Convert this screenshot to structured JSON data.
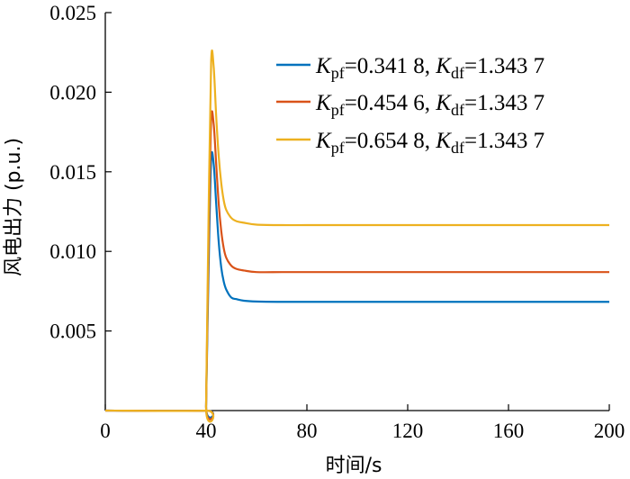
{
  "chart_data": {
    "type": "line",
    "xlabel": "时间/s",
    "ylabel": "风电出力 (p.u.)",
    "xlim": [
      0,
      200
    ],
    "ylim": [
      0,
      0.025
    ],
    "xticks": [
      0,
      40,
      80,
      120,
      160,
      200
    ],
    "xtick_labels": [
      "0",
      "40",
      "80",
      "120",
      "160",
      "200"
    ],
    "yticks": [
      0.005,
      0.01,
      0.015,
      0.02,
      0.025
    ],
    "ytick_labels": [
      "0.005",
      "0.010",
      "0.015",
      "0.020",
      "0.025"
    ],
    "grid": false,
    "legend_position": "top-right",
    "x": [
      0,
      39.9,
      40.0,
      41.0,
      42.0,
      43.0,
      44.0,
      45.0,
      46.0,
      47.0,
      48.0,
      50.0,
      52.0,
      55.0,
      60.0,
      70.0,
      80.0,
      100.0,
      120.0,
      160.0,
      200.0
    ],
    "series": [
      {
        "name_parts": [
          "K",
          "pf",
          "=0.341 8, ",
          "K",
          "df",
          "=1.343 7"
        ],
        "color": "#0072BD",
        "values": [
          0,
          0,
          0.0003,
          0.009,
          0.0157,
          0.0155,
          0.013,
          0.0106,
          0.009,
          0.0081,
          0.0076,
          0.0071,
          0.007,
          0.0069,
          0.00685,
          0.00683,
          0.00683,
          0.00683,
          0.00683,
          0.00683,
          0.00683
        ]
      },
      {
        "name_parts": [
          "K",
          "pf",
          "=0.454 6, ",
          "K",
          "df",
          "=1.343 7"
        ],
        "color": "#D95319",
        "values": [
          0,
          0,
          0.0003,
          0.0105,
          0.0182,
          0.018,
          0.0155,
          0.013,
          0.0113,
          0.0102,
          0.0096,
          0.0091,
          0.0089,
          0.0088,
          0.0087,
          0.0087,
          0.0087,
          0.0087,
          0.0087,
          0.0087,
          0.0087
        ]
      },
      {
        "name_parts": [
          "K",
          "pf",
          "=0.654 8, ",
          "K",
          "df",
          "=1.343 7"
        ],
        "color": "#EDB120",
        "values": [
          0,
          0,
          0.0003,
          0.0125,
          0.0219,
          0.0216,
          0.0185,
          0.016,
          0.0143,
          0.0132,
          0.0126,
          0.0121,
          0.0119,
          0.0118,
          0.01168,
          0.01165,
          0.01165,
          0.01165,
          0.01165,
          0.01165,
          0.01165
        ]
      }
    ]
  }
}
